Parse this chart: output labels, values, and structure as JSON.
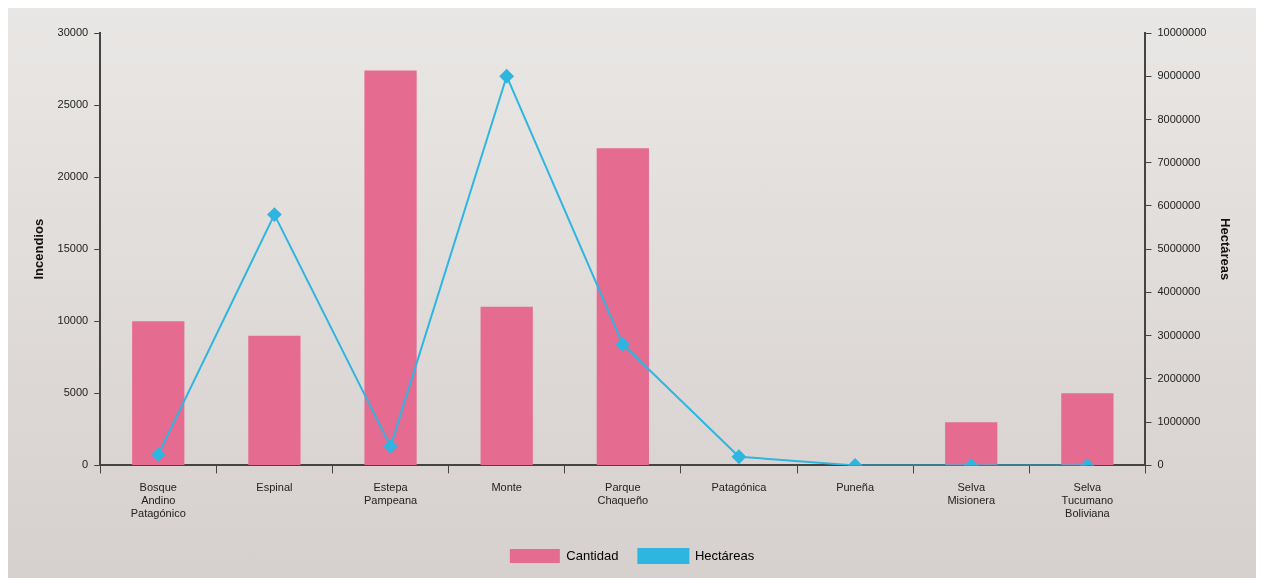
{
  "chart_data": {
    "type": "bar",
    "categories": [
      "Bosque\nAndino\nPatagónico",
      "Espinal",
      "Estepa\nPampeana",
      "Monte",
      "Parque\nChaqueño",
      "Patagónica",
      "Puneña",
      "Selva\nMisionera",
      "Selva\nTucumano\nBoliviana"
    ],
    "ylabel": "Incendios",
    "y2label": "Hectáreas",
    "ylim": [
      0,
      30000
    ],
    "yticks": [
      0,
      5000,
      10000,
      15000,
      20000,
      25000,
      30000
    ],
    "y2lim": [
      0,
      10000000
    ],
    "y2ticks": [
      0,
      1000000,
      2000000,
      3000000,
      4000000,
      5000000,
      6000000,
      7000000,
      8000000,
      9000000,
      10000000
    ],
    "series": [
      {
        "name": "Cantidad",
        "color": "#e56b90",
        "values": [
          10000,
          9000,
          27400,
          11000,
          22000,
          0,
          0,
          3000,
          5000
        ]
      },
      {
        "name": "Hectáreas",
        "type": "line",
        "axis": "y2",
        "color": "#2eb6e0",
        "marker": "diamond",
        "values": [
          250000,
          5800000,
          440000,
          9000000,
          2800000,
          200000,
          0,
          0,
          0
        ]
      }
    ],
    "legend": "bottom",
    "grid": false
  }
}
